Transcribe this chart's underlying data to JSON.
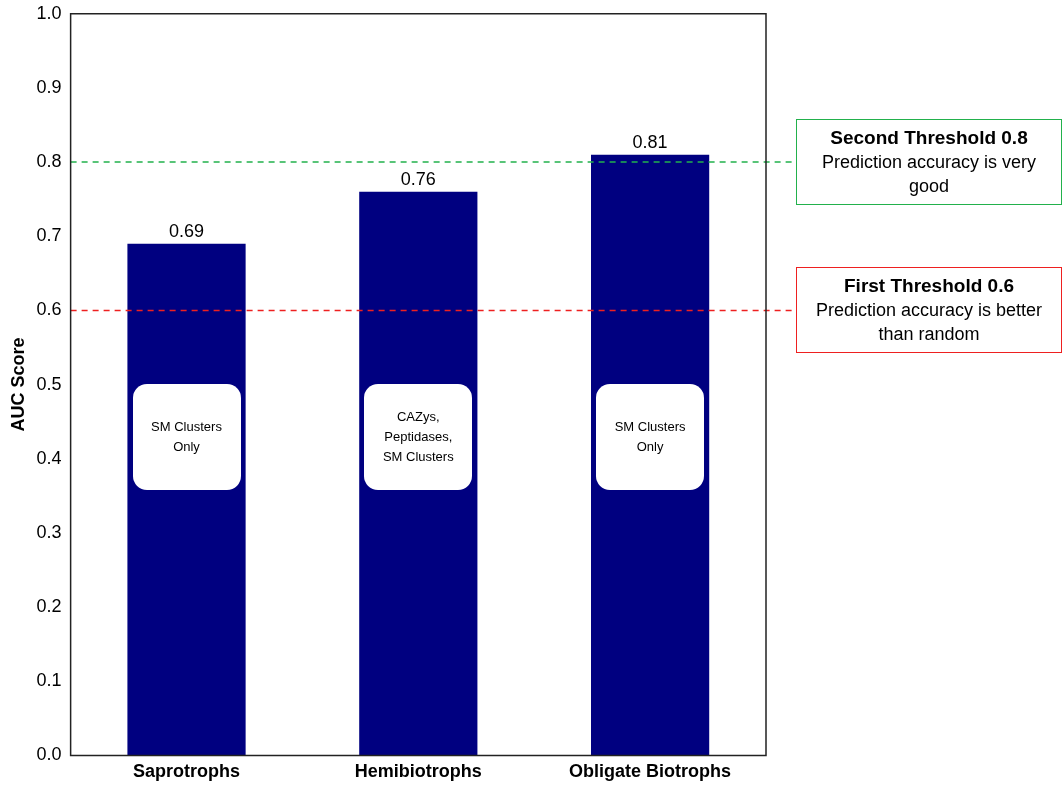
{
  "chart_data": {
    "type": "bar",
    "ylabel": "AUC Score",
    "categories": [
      "Saprotrophs",
      "Hemibiotrophs",
      "Obligate Biotrophs"
    ],
    "values": [
      0.69,
      0.76,
      0.81
    ],
    "color": "#000080",
    "data_labels": true,
    "grid": false,
    "legend": false,
    "ylim": [
      0,
      1
    ],
    "yticks": [
      {
        "value": 0,
        "label": "0.0"
      },
      {
        "value": 0.1,
        "label": "0.1"
      },
      {
        "value": 0.2,
        "label": "0.2"
      },
      {
        "value": 0.3,
        "label": "0.3"
      },
      {
        "value": 0.4,
        "label": "0.4"
      },
      {
        "value": 0.5,
        "label": "0.5"
      },
      {
        "value": 0.6,
        "label": "0.6"
      },
      {
        "value": 0.7,
        "label": "0.7"
      },
      {
        "value": 0.8,
        "label": "0.8"
      },
      {
        "value": 0.9,
        "label": "0.9"
      },
      {
        "value": 1,
        "label": "1.0"
      }
    ],
    "ref_lines": [
      {
        "axis": "y",
        "value": 0.8,
        "label": "Second Threshold 0.8",
        "color": "#22b14c",
        "line_style": "dashed"
      },
      {
        "axis": "y",
        "value": 0.6,
        "label": "First Threshold 0.6",
        "color": "#ee2020",
        "line_style": "dashed"
      }
    ],
    "annotations": [
      "Prediction accuracy is very good",
      "Prediction accuracy is better than random",
      "SM Clusters Only",
      "CAZys, Peptidases, SM Clusters",
      "SM Clusters Only"
    ]
  }
}
